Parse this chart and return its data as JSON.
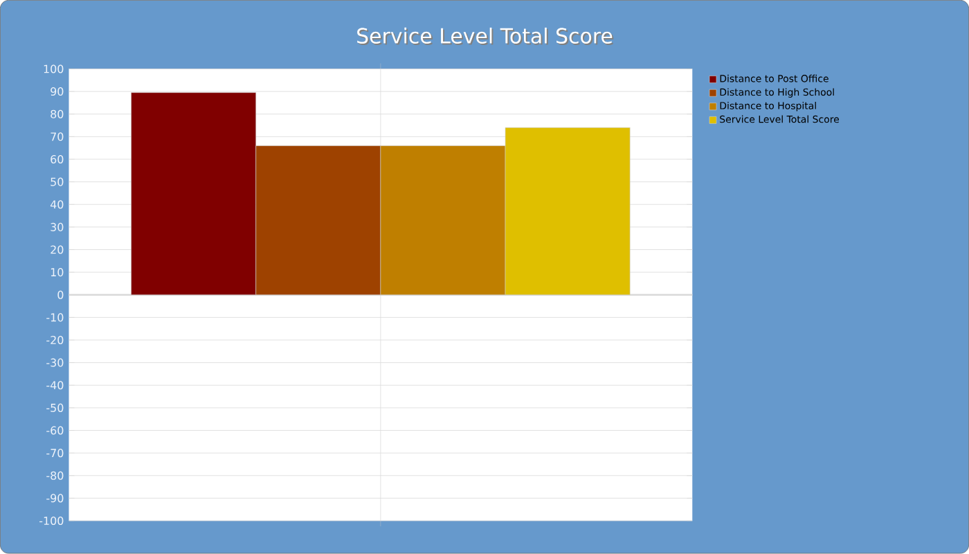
{
  "chart_data": {
    "type": "bar",
    "title": "Service Level Total Score",
    "categories": [
      null
    ],
    "series": [
      {
        "name": "Distance to Post Office",
        "color": "#800000",
        "values": [
          89.5
        ]
      },
      {
        "name": "Distance to High School",
        "color": "#9e4200",
        "values": [
          66
        ]
      },
      {
        "name": "Distance to Hospital",
        "color": "#bf7f00",
        "values": [
          66
        ]
      },
      {
        "name": "Service Level Total Score",
        "color": "#dfbf00",
        "values": [
          74
        ]
      }
    ],
    "ylim": [
      -100,
      100
    ],
    "yticks": [
      -100,
      -90,
      -80,
      -70,
      -60,
      -50,
      -40,
      -30,
      -20,
      -10,
      0,
      10,
      20,
      30,
      40,
      50,
      60,
      70,
      80,
      90,
      100
    ],
    "grid": true,
    "legend": "right"
  }
}
